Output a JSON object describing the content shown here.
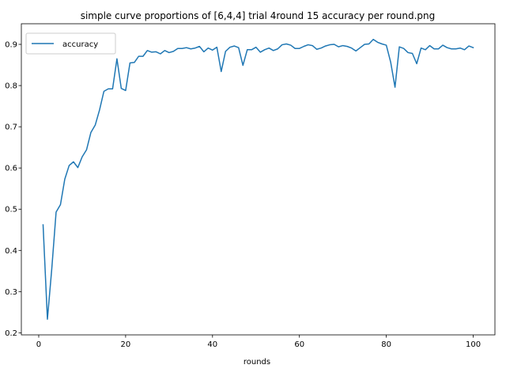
{
  "chart_data": {
    "type": "line",
    "title": "simple curve proportions of [6,4,4] trial 4round 15 accuracy per round.png",
    "xlabel": "rounds",
    "ylabel": "",
    "xlim": [
      -4,
      105
    ],
    "ylim": [
      0.195,
      0.95
    ],
    "xticks": [
      0,
      20,
      40,
      60,
      80,
      100
    ],
    "yticks": [
      0.2,
      0.3,
      0.4,
      0.5,
      0.6,
      0.7,
      0.8,
      0.9
    ],
    "grid": false,
    "legend": {
      "position": "top-left",
      "entries": [
        "accuracy"
      ]
    },
    "series": [
      {
        "name": "accuracy",
        "color": "#1f77b4",
        "x": [
          1,
          2,
          3,
          4,
          5,
          6,
          7,
          8,
          9,
          10,
          11,
          12,
          13,
          14,
          15,
          16,
          17,
          18,
          19,
          20,
          21,
          22,
          23,
          24,
          25,
          26,
          27,
          28,
          29,
          30,
          31,
          32,
          33,
          34,
          35,
          36,
          37,
          38,
          39,
          40,
          41,
          42,
          43,
          44,
          45,
          46,
          47,
          48,
          49,
          50,
          51,
          52,
          53,
          54,
          55,
          56,
          57,
          58,
          59,
          60,
          61,
          62,
          63,
          64,
          65,
          66,
          67,
          68,
          69,
          70,
          71,
          72,
          73,
          74,
          75,
          76,
          77,
          78,
          79,
          80,
          81,
          82,
          83,
          84,
          85,
          86,
          87,
          88,
          89,
          90,
          91,
          92,
          93,
          94,
          95,
          96,
          97,
          98,
          99,
          100
        ],
        "values": [
          0.462,
          0.233,
          0.355,
          0.493,
          0.511,
          0.573,
          0.606,
          0.615,
          0.601,
          0.627,
          0.644,
          0.686,
          0.704,
          0.741,
          0.786,
          0.792,
          0.792,
          0.865,
          0.793,
          0.788,
          0.855,
          0.856,
          0.871,
          0.871,
          0.885,
          0.881,
          0.882,
          0.877,
          0.885,
          0.88,
          0.883,
          0.89,
          0.89,
          0.892,
          0.889,
          0.891,
          0.895,
          0.882,
          0.891,
          0.886,
          0.893,
          0.834,
          0.883,
          0.893,
          0.896,
          0.892,
          0.849,
          0.887,
          0.887,
          0.893,
          0.881,
          0.887,
          0.891,
          0.885,
          0.889,
          0.899,
          0.901,
          0.898,
          0.89,
          0.89,
          0.895,
          0.899,
          0.897,
          0.888,
          0.891,
          0.896,
          0.899,
          0.9,
          0.894,
          0.897,
          0.895,
          0.891,
          0.884,
          0.892,
          0.9,
          0.901,
          0.912,
          0.905,
          0.901,
          0.898,
          0.857,
          0.796,
          0.894,
          0.89,
          0.88,
          0.878,
          0.853,
          0.891,
          0.887,
          0.897,
          0.889,
          0.889,
          0.898,
          0.892,
          0.889,
          0.889,
          0.891,
          0.887,
          0.896,
          0.892
        ]
      }
    ]
  }
}
